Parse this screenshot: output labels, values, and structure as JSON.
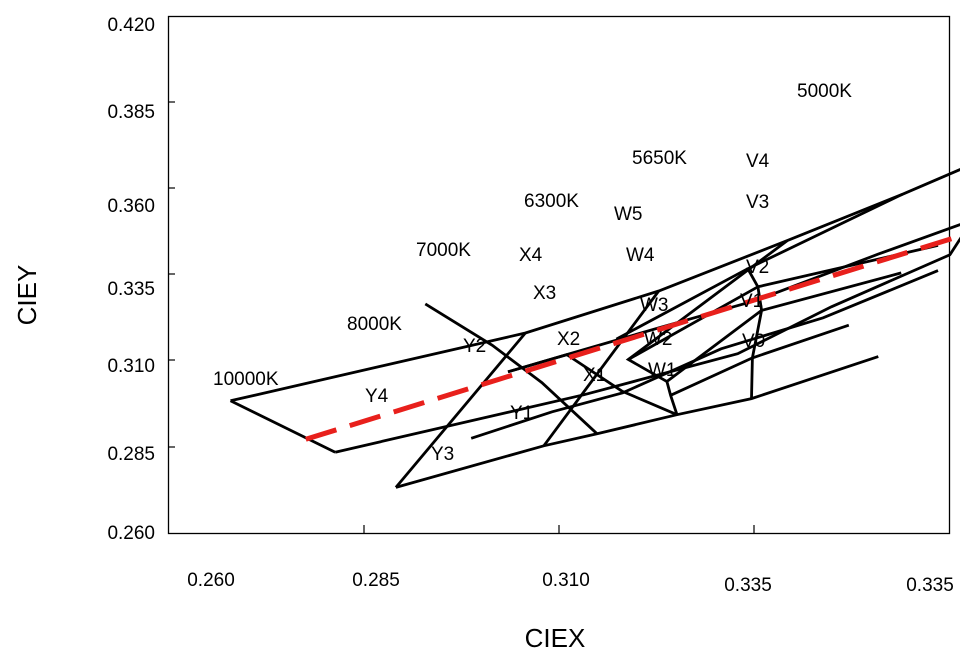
{
  "chart_data": {
    "type": "line",
    "title": "",
    "xlabel": "CIEX",
    "ylabel": "CIEY",
    "xlim": [
      0.26,
      0.345
    ],
    "ylim": [
      0.26,
      0.42
    ],
    "x_tick_labels": [
      "0.260",
      "0.285",
      "0.310",
      "0.335",
      "0.335"
    ],
    "y_tick_labels": [
      "0.420",
      "0.385",
      "0.360",
      "0.335",
      "0.310",
      "0.285",
      "0.260"
    ],
    "color_temperature_labels": [
      "5000K",
      "5650K",
      "6300K",
      "7000K",
      "8000K",
      "10000K"
    ],
    "bin_labels": [
      "V4",
      "V3",
      "V2",
      "V1",
      "V0",
      "W5",
      "W4",
      "W3",
      "W2",
      "W1",
      "X4",
      "X3",
      "X2",
      "X1",
      "Y2",
      "Y1",
      "Y4",
      "Y3"
    ],
    "bin_grid_lines": [
      [
        [
          0.2668,
          0.3009
        ],
        [
          0.2989,
          0.3219
        ],
        [
          0.3134,
          0.3349
        ],
        [
          0.3274,
          0.3505
        ],
        [
          0.3399,
          0.3648
        ],
        [
          0.3508,
          0.3781
        ]
      ],
      [
        [
          0.2782,
          0.285
        ],
        [
          0.3053,
          0.3028
        ],
        [
          0.322,
          0.3155
        ],
        [
          0.3322,
          0.33
        ],
        [
          0.3451,
          0.3461
        ],
        [
          0.3493,
          0.3645
        ]
      ],
      [
        [
          0.2782,
          0.285
        ],
        [
          0.2668,
          0.3009
        ]
      ],
      [
        [
          0.2848,
          0.2741
        ],
        [
          0.3009,
          0.287
        ],
        [
          0.3067,
          0.2907
        ],
        [
          0.3154,
          0.2966
        ],
        [
          0.3235,
          0.3016
        ],
        [
          0.3373,
          0.3146
        ]
      ],
      [
        [
          0.2848,
          0.2741
        ],
        [
          0.2989,
          0.3219
        ]
      ],
      [
        [
          0.293,
          0.2893
        ],
        [
          0.3018,
          0.2975
        ],
        [
          0.3095,
          0.3034
        ],
        [
          0.3202,
          0.317
        ],
        [
          0.3313,
          0.3266
        ],
        [
          0.3438,
          0.3412
        ]
      ],
      [
        [
          0.297,
          0.3099
        ],
        [
          0.3034,
          0.3152
        ],
        [
          0.3138,
          0.3238
        ],
        [
          0.3239,
          0.3319
        ],
        [
          0.3373,
          0.3463
        ],
        [
          0.3484,
          0.3577
        ]
      ],
      [
        [
          0.3009,
          0.287
        ],
        [
          0.3134,
          0.3349
        ]
      ],
      [
        [
          0.3067,
          0.2907
        ],
        [
          0.3007,
          0.3065
        ],
        [
          0.2953,
          0.3181
        ],
        [
          0.288,
          0.3309
        ]
      ],
      [
        [
          0.3154,
          0.2966
        ],
        [
          0.3147,
          0.3026
        ],
        [
          0.3143,
          0.3069
        ],
        [
          0.3101,
          0.3137
        ],
        [
          0.3274,
          0.3505
        ]
      ],
      [
        [
          0.3235,
          0.3016
        ],
        [
          0.3236,
          0.3142
        ],
        [
          0.3246,
          0.3289
        ],
        [
          0.3242,
          0.3362
        ],
        [
          0.3231,
          0.3418
        ],
        [
          0.3399,
          0.3648
        ]
      ],
      [
        [
          0.3154,
          0.2966
        ],
        [
          0.3094,
          0.3039
        ],
        [
          0.3034,
          0.3152
        ],
        [
          0.297,
          0.3099
        ]
      ],
      [
        [
          0.3147,
          0.3026
        ],
        [
          0.3236,
          0.3142
        ]
      ],
      [
        [
          0.3143,
          0.3069
        ],
        [
          0.3246,
          0.3289
        ]
      ],
      [
        [
          0.3101,
          0.3137
        ],
        [
          0.3242,
          0.3362
        ]
      ],
      [
        [
          0.3088,
          0.32
        ],
        [
          0.3231,
          0.3418
        ]
      ],
      [
        [
          0.3236,
          0.3142
        ],
        [
          0.3341,
          0.3243
        ]
      ],
      [
        [
          0.3246,
          0.3289
        ],
        [
          0.3398,
          0.3405
        ]
      ],
      [
        [
          0.3242,
          0.3362
        ],
        [
          0.3438,
          0.349
        ]
      ]
    ],
    "trend_line": [
      [
        0.275,
        0.289
      ],
      [
        0.3503,
        0.3555
      ]
    ],
    "grid": false,
    "legend": "none"
  }
}
